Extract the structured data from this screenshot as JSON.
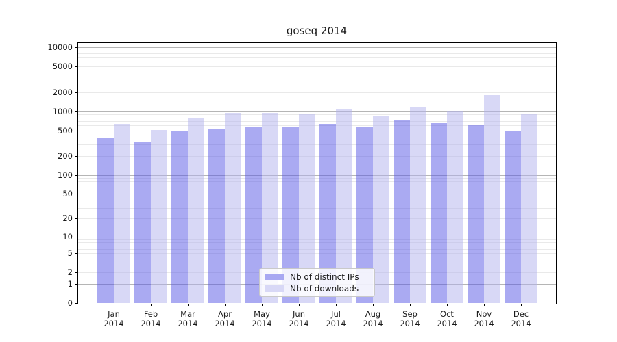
{
  "title": "goseq 2014",
  "colors": {
    "ips_bar": "#a8a8f2",
    "downloads_bar": "#d8d8f6",
    "ips_bar_rgba": "rgba(85,85,230,0.5)",
    "downloads_bar_rgba": "rgba(177,177,237,0.5)",
    "grid_major": "#b5b5b5",
    "grid_minor": "#e9e9e9",
    "axis": "#000000"
  },
  "legend": {
    "items": [
      {
        "key": "ips",
        "label": "Nb of distinct IPs"
      },
      {
        "key": "downloads",
        "label": "Nb of downloads"
      }
    ]
  },
  "chart_data": {
    "type": "bar",
    "title": "goseq 2014",
    "xlabel": "",
    "ylabel": "",
    "scale": "log10(1+y)",
    "grid": true,
    "legend_position": "bottom-center",
    "year": "2014",
    "categories": [
      "Jan",
      "Feb",
      "Mar",
      "Apr",
      "May",
      "Jun",
      "Jul",
      "Aug",
      "Sep",
      "Oct",
      "Nov",
      "Dec"
    ],
    "series": [
      {
        "name": "Nb of distinct IPs",
        "values": [
          382,
          330,
          487,
          525,
          574,
          573,
          638,
          563,
          738,
          645,
          600,
          487
        ]
      },
      {
        "name": "Nb of downloads",
        "values": [
          617,
          515,
          770,
          946,
          950,
          900,
          1060,
          850,
          1165,
          1003,
          1800,
          890
        ]
      }
    ],
    "yticks": [
      0,
      1,
      2,
      5,
      10,
      20,
      50,
      100,
      200,
      500,
      1000,
      2000,
      5000,
      10000
    ],
    "ylim": [
      0,
      10000
    ]
  }
}
